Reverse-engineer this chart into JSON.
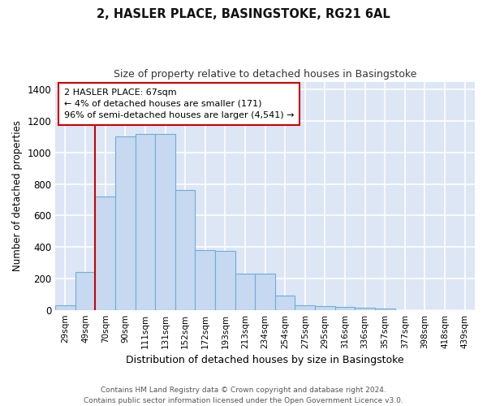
{
  "title_line1": "2, HASLER PLACE, BASINGSTOKE, RG21 6AL",
  "title_line2": "Size of property relative to detached houses in Basingstoke",
  "xlabel": "Distribution of detached houses by size in Basingstoke",
  "ylabel": "Number of detached properties",
  "categories": [
    "29sqm",
    "49sqm",
    "70sqm",
    "90sqm",
    "111sqm",
    "131sqm",
    "152sqm",
    "172sqm",
    "193sqm",
    "213sqm",
    "234sqm",
    "254sqm",
    "275sqm",
    "295sqm",
    "316sqm",
    "336sqm",
    "357sqm",
    "377sqm",
    "398sqm",
    "418sqm",
    "439sqm"
  ],
  "bar_heights": [
    30,
    240,
    720,
    1100,
    1120,
    1120,
    760,
    380,
    375,
    230,
    230,
    90,
    30,
    25,
    20,
    15,
    10,
    0,
    0,
    0,
    0
  ],
  "bar_color": "#c6d9f1",
  "bar_edge_color": "#6baed6",
  "vline_color": "#cc0000",
  "vline_x": 1.5,
  "annotation_text": "2 HASLER PLACE: 67sqm\n← 4% of detached houses are smaller (171)\n96% of semi-detached houses are larger (4,541) →",
  "annotation_box_edge": "#cc0000",
  "annotation_box_face": "#ffffff",
  "ylim": [
    0,
    1450
  ],
  "yticks": [
    0,
    200,
    400,
    600,
    800,
    1000,
    1200,
    1400
  ],
  "fig_bg_color": "#ffffff",
  "plot_bg_color": "#dce6f5",
  "grid_color": "#ffffff",
  "footer_line1": "Contains HM Land Registry data © Crown copyright and database right 2024.",
  "footer_line2": "Contains public sector information licensed under the Open Government Licence v3.0."
}
